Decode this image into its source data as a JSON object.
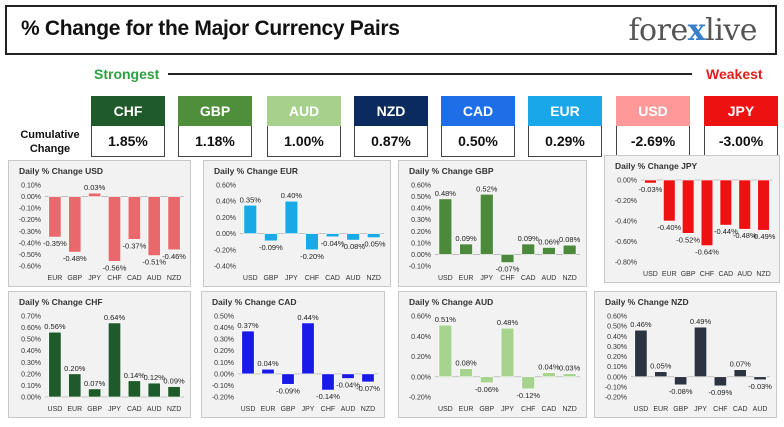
{
  "header": {
    "title": "% Change for the Major Currency Pairs",
    "logo_left": "fore",
    "logo_x": "x",
    "logo_right": "live"
  },
  "scale": {
    "strongest": "Strongest",
    "weakest": "Weakest"
  },
  "cumulative_label": "Cumulative Change",
  "currencies": [
    {
      "code": "CHF",
      "value": "1.85%",
      "color": "#1f5a2a"
    },
    {
      "code": "GBP",
      "value": "1.18%",
      "color": "#4f8f3b"
    },
    {
      "code": "AUD",
      "value": "1.00%",
      "color": "#a8d08d"
    },
    {
      "code": "NZD",
      "value": "0.87%",
      "color": "#0b2a5e"
    },
    {
      "code": "CAD",
      "value": "0.50%",
      "color": "#1e6ee8"
    },
    {
      "code": "EUR",
      "value": "0.29%",
      "color": "#18a7e8"
    },
    {
      "code": "USD",
      "value": "-2.69%",
      "color": "#ff9999"
    },
    {
      "code": "JPY",
      "value": "-3.00%",
      "color": "#ee1111"
    }
  ],
  "chart_data": [
    {
      "type": "bar",
      "title": "Daily % Change USD",
      "color": "#e8686b",
      "categories": [
        "EUR",
        "GBP",
        "JPY",
        "CHF",
        "CAD",
        "AUD",
        "NZD"
      ],
      "values": [
        -0.35,
        -0.48,
        0.03,
        -0.56,
        -0.37,
        -0.51,
        -0.46
      ],
      "labels": [
        "-0.35%",
        "-0.48%",
        "0.03%",
        "-0.56%",
        "-0.37%",
        "-0.51%",
        "-0.46%"
      ],
      "yticks": [
        "0.10%",
        "0.00%",
        "-0.10%",
        "-0.20%",
        "-0.30%",
        "-0.40%",
        "-0.50%",
        "-0.60%"
      ],
      "ylim": [
        -0.6,
        0.1
      ]
    },
    {
      "type": "bar",
      "title": "Daily % Change EUR",
      "color": "#19a9e6",
      "categories": [
        "USD",
        "GBP",
        "JPY",
        "CHF",
        "CAD",
        "AUD",
        "NZD"
      ],
      "values": [
        0.35,
        -0.09,
        0.4,
        -0.2,
        -0.04,
        -0.08,
        -0.05
      ],
      "labels": [
        "0.35%",
        "-0.09%",
        "0.40%",
        "-0.20%",
        "-0.04%",
        "-0.08%",
        "-0.05%"
      ],
      "yticks": [
        "0.60%",
        "0.40%",
        "0.20%",
        "0.00%",
        "-0.20%",
        "-0.40%"
      ],
      "ylim": [
        -0.4,
        0.6
      ]
    },
    {
      "type": "bar",
      "title": "Daily % Change GBP",
      "color": "#4b8a3a",
      "categories": [
        "USD",
        "EUR",
        "JPY",
        "CHF",
        "CAD",
        "AUD",
        "NZD"
      ],
      "values": [
        0.48,
        0.09,
        0.52,
        -0.07,
        0.09,
        0.06,
        0.08
      ],
      "labels": [
        "0.48%",
        "0.09%",
        "0.52%",
        "-0.07%",
        "0.09%",
        "0.06%",
        "0.08%"
      ],
      "yticks": [
        "0.60%",
        "0.50%",
        "0.40%",
        "0.30%",
        "0.20%",
        "0.10%",
        "0.00%",
        "-0.10%"
      ],
      "ylim": [
        -0.1,
        0.6
      ]
    },
    {
      "type": "bar",
      "title": "Daily % Change JPY",
      "color": "#ee1111",
      "categories": [
        "USD",
        "EUR",
        "GBP",
        "CHF",
        "CAD",
        "AUD",
        "NZD"
      ],
      "values": [
        -0.03,
        -0.4,
        -0.52,
        -0.64,
        -0.44,
        -0.48,
        -0.49
      ],
      "labels": [
        "-0.03%",
        "-0.40%",
        "-0.52%",
        "-0.64%",
        "-0.44%",
        "-0.48%",
        "-0.49%"
      ],
      "yticks": [
        "0.00%",
        "-0.20%",
        "-0.40%",
        "-0.60%",
        "-0.80%"
      ],
      "ylim": [
        -0.8,
        0.0
      ]
    },
    {
      "type": "bar",
      "title": "Daily % Change CHF",
      "color": "#1f5a2a",
      "categories": [
        "USD",
        "EUR",
        "GBP",
        "JPY",
        "CAD",
        "AUD",
        "NZD"
      ],
      "values": [
        0.56,
        0.2,
        0.07,
        0.64,
        0.14,
        0.12,
        0.09
      ],
      "labels": [
        "0.56%",
        "0.20%",
        "0.07%",
        "0.64%",
        "0.14%",
        "0.12%",
        "0.09%"
      ],
      "yticks": [
        "0.70%",
        "0.60%",
        "0.50%",
        "0.40%",
        "0.30%",
        "0.20%",
        "0.10%",
        "0.00%"
      ],
      "ylim": [
        0.0,
        0.7
      ]
    },
    {
      "type": "bar",
      "title": "Daily % Change CAD",
      "color": "#1a1ae8",
      "categories": [
        "USD",
        "EUR",
        "GBP",
        "JPY",
        "CHF",
        "AUD",
        "NZD"
      ],
      "values": [
        0.37,
        0.04,
        -0.09,
        0.44,
        -0.14,
        -0.04,
        -0.07
      ],
      "labels": [
        "0.37%",
        "0.04%",
        "-0.09%",
        "0.44%",
        "-0.14%",
        "-0.04%",
        "-0.07%"
      ],
      "yticks": [
        "0.50%",
        "0.40%",
        "0.30%",
        "0.20%",
        "0.10%",
        "0.00%",
        "-0.10%",
        "-0.20%"
      ],
      "ylim": [
        -0.2,
        0.5
      ]
    },
    {
      "type": "bar",
      "title": "Daily % Change AUD",
      "color": "#a6d48e",
      "categories": [
        "USD",
        "EUR",
        "GBP",
        "JPY",
        "CHF",
        "CAD",
        "NZD"
      ],
      "values": [
        0.51,
        0.08,
        -0.06,
        0.48,
        -0.12,
        0.04,
        0.03
      ],
      "labels": [
        "0.51%",
        "0.08%",
        "-0.06%",
        "0.48%",
        "-0.12%",
        "0.04%",
        "0.03%"
      ],
      "yticks": [
        "0.60%",
        "0.40%",
        "0.20%",
        "0.00%",
        "-0.20%"
      ],
      "ylim": [
        -0.2,
        0.6
      ]
    },
    {
      "type": "bar",
      "title": "Daily % Change NZD",
      "color": "#2b3440",
      "categories": [
        "USD",
        "EUR",
        "GBP",
        "JPY",
        "CHF",
        "CAD",
        "AUD"
      ],
      "values": [
        0.46,
        0.05,
        -0.08,
        0.49,
        -0.09,
        0.07,
        -0.03
      ],
      "labels": [
        "0.46%",
        "0.05%",
        "-0.08%",
        "0.49%",
        "-0.09%",
        "0.07%",
        "-0.03%"
      ],
      "yticks": [
        "0.60%",
        "0.50%",
        "0.40%",
        "0.30%",
        "0.20%",
        "0.10%",
        "0.00%",
        "-0.10%",
        "-0.20%"
      ],
      "ylim": [
        -0.2,
        0.6
      ]
    }
  ]
}
